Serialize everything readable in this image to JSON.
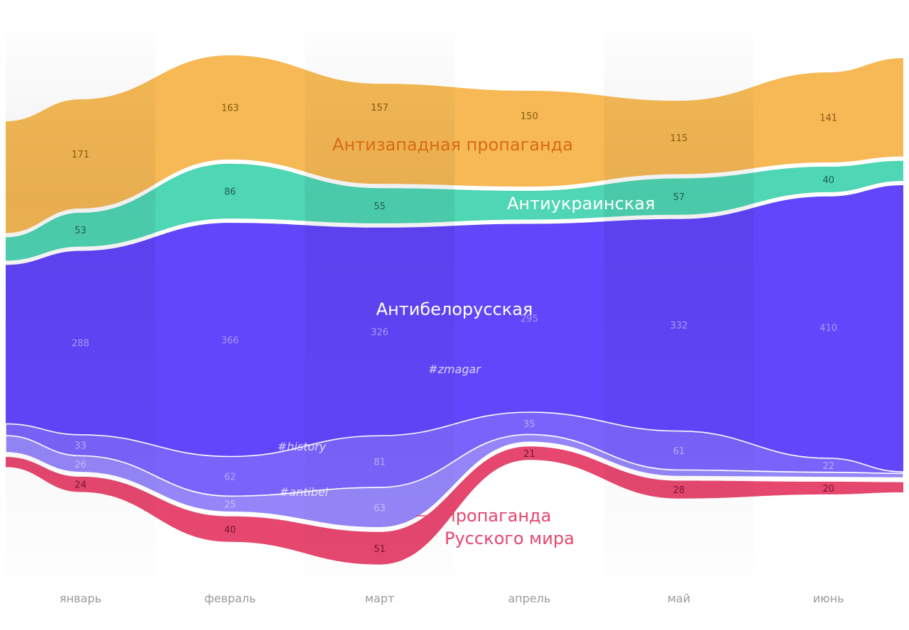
{
  "chart_data": {
    "type": "area",
    "subtype": "streamgraph",
    "categories": [
      "январь",
      "февраль",
      "март",
      "апрель",
      "май",
      "июнь"
    ],
    "series": [
      {
        "name": "Антизападная пропаганда",
        "color": "#f6b955",
        "label_color": "#d96a12",
        "values": [
          171,
          163,
          157,
          150,
          115,
          141
        ],
        "labels": [
          171,
          163,
          157,
          150,
          115,
          141
        ]
      },
      {
        "name": "Антиукраинская",
        "color": "#4fd6b4",
        "label_color": "#ffffff",
        "values": [
          53,
          86,
          55,
          45,
          57,
          40
        ],
        "labels": [
          53,
          86,
          55,
          null,
          57,
          40
        ]
      },
      {
        "name": "Антибелорусская",
        "tag": "#zmagar",
        "color": "#6146fb",
        "label_color": "#ffffff",
        "values": [
          288,
          366,
          326,
          295,
          332,
          410
        ],
        "labels": [
          288,
          366,
          326,
          295,
          332,
          410
        ]
      },
      {
        "name": "#history",
        "color": "#7a63fb",
        "label_color": "#ffffff",
        "values": [
          33,
          62,
          81,
          35,
          61,
          22
        ],
        "labels": [
          33,
          62,
          81,
          35,
          61,
          22
        ]
      },
      {
        "name": "#antibel",
        "color": "#9486f8",
        "label_color": "#ffffff",
        "values": [
          26,
          25,
          63,
          12,
          10,
          8
        ],
        "labels": [
          26,
          25,
          63,
          null,
          null,
          null
        ]
      },
      {
        "name": "пропаганда Русского мира",
        "name_lines": [
          "пропаганда",
          "Русского мира"
        ],
        "color": "#e5476f",
        "label_color": "#e5476f",
        "values": [
          24,
          40,
          51,
          21,
          28,
          20
        ],
        "labels": [
          24,
          40,
          51,
          21,
          28,
          20
        ]
      }
    ],
    "grid": false,
    "legend": "inline"
  }
}
